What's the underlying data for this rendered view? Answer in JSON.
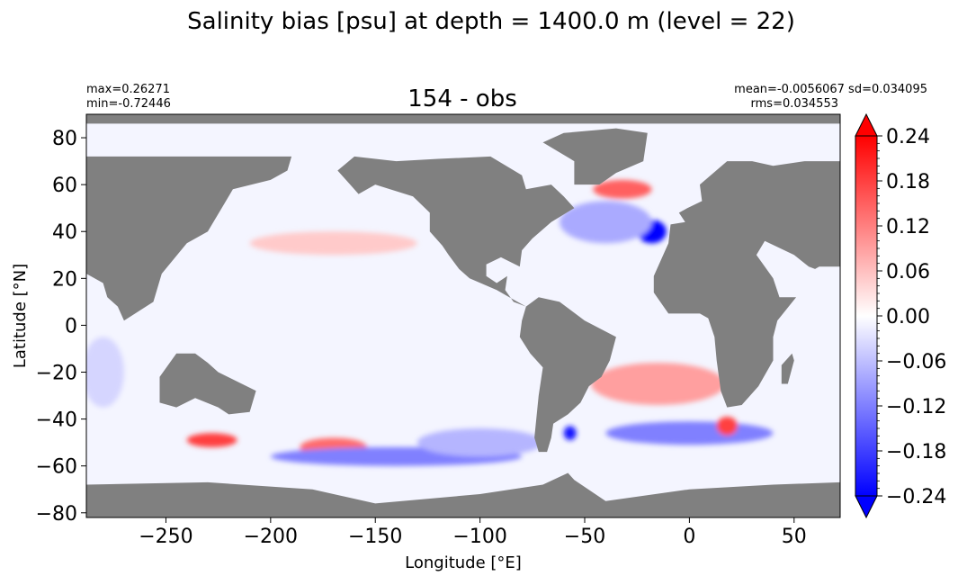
{
  "figure": {
    "suptitle": "Salinity bias [psu] at depth = 1400.0 m (level = 22)"
  },
  "colors": {
    "land": "#808080",
    "positive": "#ff0000",
    "zero": "#ffffff",
    "negative": "#0000ff"
  },
  "chart_data": {
    "type": "heatmap",
    "title": "154 - obs",
    "stats_left": {
      "max": "max=0.26271",
      "min": "min=-0.72446"
    },
    "stats_right": {
      "line1": "mean=-0.0056067 sd=0.034095",
      "line2": "rms=0.034553"
    },
    "xlabel": "Longitude [°E]",
    "ylabel": "Latitude [°N]",
    "xlim": [
      -288,
      72
    ],
    "ylim": [
      -82,
      90
    ],
    "xticks": [
      -250,
      -200,
      -150,
      -100,
      -50,
      0,
      50
    ],
    "xtick_labels": [
      "−250",
      "−200",
      "−150",
      "−100",
      "−50",
      "0",
      "50"
    ],
    "yticks": [
      -80,
      -60,
      -40,
      -20,
      0,
      20,
      40,
      60,
      80
    ],
    "ytick_labels": [
      "−80",
      "−60",
      "−40",
      "−20",
      "0",
      "20",
      "40",
      "60",
      "80"
    ],
    "colorbar": {
      "vmin": -0.24,
      "vmax": 0.24,
      "extend": "both",
      "ticks": [
        -0.24,
        -0.18,
        -0.12,
        -0.06,
        0.0,
        0.06,
        0.12,
        0.18,
        0.24
      ],
      "tick_labels": [
        "−0.24",
        "−0.18",
        "−0.12",
        "−0.06",
        "0.00",
        "0.06",
        "0.12",
        "0.18",
        "0.24"
      ]
    },
    "continents": [
      {
        "name": "North America",
        "outline": [
          [
            -168,
            66
          ],
          [
            -160,
            72
          ],
          [
            -140,
            70
          ],
          [
            -120,
            71
          ],
          [
            -95,
            72
          ],
          [
            -80,
            64
          ],
          [
            -78,
            58
          ],
          [
            -66,
            60
          ],
          [
            -60,
            55
          ],
          [
            -55,
            50
          ],
          [
            -66,
            44
          ],
          [
            -75,
            37
          ],
          [
            -80,
            32
          ],
          [
            -81,
            25
          ],
          [
            -90,
            29
          ],
          [
            -97,
            26
          ],
          [
            -97,
            21
          ],
          [
            -92,
            18
          ],
          [
            -87,
            21
          ],
          [
            -88,
            15
          ],
          [
            -84,
            10
          ],
          [
            -78,
            8
          ],
          [
            -86,
            12
          ],
          [
            -92,
            15
          ],
          [
            -105,
            20
          ],
          [
            -110,
            24
          ],
          [
            -115,
            30
          ],
          [
            -118,
            34
          ],
          [
            -124,
            40
          ],
          [
            -124,
            48
          ],
          [
            -132,
            55
          ],
          [
            -150,
            60
          ],
          [
            -158,
            56
          ],
          [
            -162,
            60
          ]
        ]
      },
      {
        "name": "Greenland",
        "outline": [
          [
            -55,
            60
          ],
          [
            -43,
            60
          ],
          [
            -35,
            65
          ],
          [
            -22,
            70
          ],
          [
            -20,
            82
          ],
          [
            -35,
            84
          ],
          [
            -60,
            82
          ],
          [
            -70,
            78
          ],
          [
            -55,
            70
          ]
        ]
      },
      {
        "name": "South America",
        "outline": [
          [
            -78,
            8
          ],
          [
            -72,
            12
          ],
          [
            -62,
            10
          ],
          [
            -50,
            2
          ],
          [
            -35,
            -5
          ],
          [
            -38,
            -15
          ],
          [
            -42,
            -22
          ],
          [
            -48,
            -26
          ],
          [
            -52,
            -33
          ],
          [
            -58,
            -38
          ],
          [
            -65,
            -42
          ],
          [
            -66,
            -48
          ],
          [
            -68,
            -54
          ],
          [
            -72,
            -54
          ],
          [
            -74,
            -48
          ],
          [
            -72,
            -30
          ],
          [
            -70,
            -18
          ],
          [
            -76,
            -12
          ],
          [
            -81,
            -5
          ],
          [
            -80,
            2
          ]
        ]
      },
      {
        "name": "Afro-Eurasia",
        "outline": [
          [
            -10,
            35
          ],
          [
            -17,
            21
          ],
          [
            -17,
            14
          ],
          [
            -10,
            5
          ],
          [
            5,
            5
          ],
          [
            9,
            3
          ],
          [
            12,
            -5
          ],
          [
            13,
            -15
          ],
          [
            15,
            -28
          ],
          [
            18,
            -35
          ],
          [
            25,
            -34
          ],
          [
            33,
            -26
          ],
          [
            40,
            -15
          ],
          [
            40,
            -5
          ],
          [
            42,
            2
          ],
          [
            51,
            12
          ],
          [
            43,
            12
          ],
          [
            40,
            20
          ],
          [
            32,
            30
          ],
          [
            36,
            36
          ],
          [
            50,
            30
          ],
          [
            57,
            25
          ],
          [
            60,
            24
          ],
          [
            62,
            25
          ],
          [
            72,
            25
          ],
          [
            72,
            70
          ],
          [
            55,
            70
          ],
          [
            40,
            68
          ],
          [
            30,
            70
          ],
          [
            18,
            70
          ],
          [
            5,
            60
          ],
          [
            6,
            53
          ],
          [
            -1,
            50
          ],
          [
            -5,
            48
          ],
          [
            -2,
            44
          ],
          [
            -9,
            43
          ]
        ]
      },
      {
        "name": "Madagascar",
        "outline": [
          [
            44,
            -25
          ],
          [
            47,
            -25
          ],
          [
            50,
            -15
          ],
          [
            49,
            -12
          ],
          [
            44,
            -17
          ]
        ]
      },
      {
        "name": "Asia West",
        "outline": [
          [
            -288,
            72
          ],
          [
            -288,
            22
          ],
          [
            -280,
            18
          ],
          [
            -278,
            12
          ],
          [
            -273,
            8
          ],
          [
            -270,
            2
          ],
          [
            -256,
            10
          ],
          [
            -252,
            22
          ],
          [
            -240,
            35
          ],
          [
            -230,
            40
          ],
          [
            -222,
            52
          ],
          [
            -218,
            58
          ],
          [
            -200,
            62
          ],
          [
            -192,
            66
          ],
          [
            -190,
            72
          ]
        ]
      },
      {
        "name": "Australia",
        "outline": [
          [
            -245,
            -12
          ],
          [
            -236,
            -12
          ],
          [
            -230,
            -16
          ],
          [
            -225,
            -20
          ],
          [
            -207,
            -28
          ],
          [
            -210,
            -37
          ],
          [
            -220,
            -38
          ],
          [
            -225,
            -35
          ],
          [
            -236,
            -31
          ],
          [
            -245,
            -35
          ],
          [
            -253,
            -33
          ],
          [
            -253,
            -22
          ]
        ]
      },
      {
        "name": "Antarctica",
        "outline": [
          [
            -288,
            -68
          ],
          [
            -230,
            -67
          ],
          [
            -180,
            -70
          ],
          [
            -150,
            -76
          ],
          [
            -100,
            -72
          ],
          [
            -70,
            -68
          ],
          [
            -58,
            -63
          ],
          [
            -55,
            -66
          ],
          [
            -40,
            -75
          ],
          [
            0,
            -70
          ],
          [
            40,
            -68
          ],
          [
            72,
            -67
          ],
          [
            72,
            -82
          ],
          [
            -288,
            -82
          ]
        ]
      },
      {
        "name": "Arctic Cap",
        "outline": [
          [
            -288,
            90
          ],
          [
            72,
            90
          ],
          [
            72,
            86
          ],
          [
            -288,
            86
          ]
        ]
      }
    ],
    "anomalies": [
      {
        "name": "Mediterranean outflow",
        "lon": -18,
        "lat": 40,
        "rx": 7,
        "ry": 5,
        "value": -0.24
      },
      {
        "name": "Labrador Sea",
        "lon": -32,
        "lat": 58,
        "rx": 14,
        "ry": 4,
        "value": 0.15
      },
      {
        "name": "Subpolar North Atlantic",
        "lon": -40,
        "lat": 44,
        "rx": 22,
        "ry": 9,
        "value": -0.08
      },
      {
        "name": "South Atlantic",
        "lon": -15,
        "lat": -25,
        "rx": 32,
        "ry": 9,
        "value": 0.09
      },
      {
        "name": "Southern Ocean west",
        "lon": -228,
        "lat": -49,
        "rx": 12,
        "ry": 3,
        "value": 0.18
      },
      {
        "name": "Southern Ocean central",
        "lon": -170,
        "lat": -52,
        "rx": 16,
        "ry": 4,
        "value": 0.14
      },
      {
        "name": "ACC band",
        "lon": -140,
        "lat": -56,
        "rx": 60,
        "ry": 4,
        "value": -0.12
      },
      {
        "name": "Atlantic sector ACC",
        "lon": 0,
        "lat": -46,
        "rx": 40,
        "ry": 5,
        "value": -0.12
      },
      {
        "name": "Agulhas",
        "lon": 18,
        "lat": -43,
        "rx": 5,
        "ry": 4,
        "value": 0.18
      },
      {
        "name": "Drake Passage",
        "lon": -57,
        "lat": -46,
        "rx": 3,
        "ry": 3,
        "value": -0.22
      },
      {
        "name": "North Pacific",
        "lon": -170,
        "lat": 35,
        "rx": 40,
        "ry": 5,
        "value": 0.05
      },
      {
        "name": "Indian Ocean",
        "lon": -280,
        "lat": -20,
        "rx": 10,
        "ry": 15,
        "value": -0.04
      },
      {
        "name": "Southern Pacific",
        "lon": -100,
        "lat": -50,
        "rx": 30,
        "ry": 6,
        "value": -0.07
      }
    ]
  }
}
